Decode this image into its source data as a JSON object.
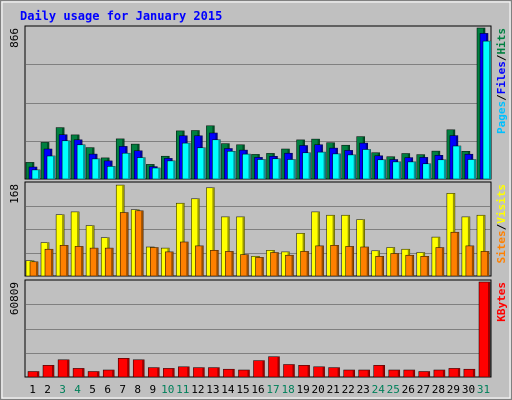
{
  "chart_data": {
    "type": "bar",
    "title": "Daily usage for January 2015",
    "categories": [
      "1",
      "2",
      "3",
      "4",
      "5",
      "6",
      "7",
      "8",
      "9",
      "10",
      "11",
      "12",
      "13",
      "14",
      "15",
      "16",
      "17",
      "18",
      "19",
      "20",
      "21",
      "22",
      "23",
      "24",
      "25",
      "26",
      "27",
      "28",
      "29",
      "30",
      "31"
    ],
    "weekend_days": [
      3,
      4,
      10,
      11,
      17,
      18,
      24,
      25,
      31
    ],
    "panels": [
      {
        "id": "top",
        "ymax": 866,
        "ymax_label": "866",
        "legend": [
          "Pages",
          "Files",
          "Hits"
        ],
        "legend_colors": [
          "#00c0ff",
          "#0000ff",
          "#008040"
        ],
        "series": [
          {
            "name": "Hits",
            "color": "#008040",
            "values": [
              95,
              210,
              295,
              253,
              180,
              121,
              230,
              200,
              84,
              131,
              276,
              278,
              305,
              203,
              196,
              141,
              147,
              172,
              224,
              229,
              208,
              194,
              243,
              151,
              128,
              146,
              140,
              160,
              282,
              159,
              866
            ]
          },
          {
            "name": "Files",
            "color": "#0000ff",
            "values": [
              69,
              172,
              254,
              225,
              143,
              104,
              187,
              162,
              71,
              118,
              248,
              248,
              264,
              175,
              166,
              124,
              130,
              148,
              192,
              197,
              177,
              164,
              206,
              133,
              112,
              123,
              124,
              136,
              249,
              142,
              835
            ]
          },
          {
            "name": "Pages",
            "color": "#00ffff",
            "values": [
              52,
              132,
              219,
              196,
              115,
              72,
              148,
              123,
              63,
              104,
              206,
              179,
              225,
              159,
              143,
              112,
              116,
              112,
              150,
              154,
              144,
              138,
              169,
              110,
              98,
              98,
              87,
              110,
              189,
              112,
              791
            ]
          }
        ]
      },
      {
        "id": "mid",
        "ymax": 168,
        "ymax_label": "168",
        "legend": [
          "Sites",
          "Visits"
        ],
        "legend_colors": [
          "#ff8000",
          "#ffff00"
        ],
        "series": [
          {
            "name": "Visits",
            "color": "#ffff00",
            "values": [
              28,
              61,
              112,
              117,
              92,
              70,
              166,
              121,
              53,
              51,
              133,
              141,
              161,
              108,
              108,
              36,
              47,
              44,
              78,
              117,
              111,
              111,
              103,
              46,
              52,
              49,
              43,
              71,
              151,
              108,
              111
            ]
          },
          {
            "name": "Sites",
            "color": "#ff8000",
            "values": [
              26,
              49,
              56,
              54,
              51,
              51,
              116,
              119,
              52,
              44,
              62,
              55,
              47,
              45,
              39,
              34,
              43,
              38,
              45,
              55,
              56,
              54,
              53,
              36,
              41,
              38,
              36,
              52,
              80,
              55,
              45
            ]
          }
        ]
      },
      {
        "id": "bot",
        "ymax": 60809,
        "ymax_label": "60809",
        "legend": [
          "KBytes"
        ],
        "legend_colors": [
          "#ff0000"
        ],
        "series": [
          {
            "name": "KBytes",
            "color": "#ff0000",
            "values": [
              3500,
              7500,
              11000,
              5500,
              3500,
              4500,
              12000,
              11000,
              6000,
              5500,
              6500,
              6000,
              6000,
              5000,
              4500,
              10500,
              13000,
              8000,
              7500,
              6500,
              6000,
              4500,
              4500,
              7500,
              4500,
              4500,
              3500,
              4500,
              5500,
              5000,
              60809
            ]
          }
        ]
      }
    ]
  }
}
